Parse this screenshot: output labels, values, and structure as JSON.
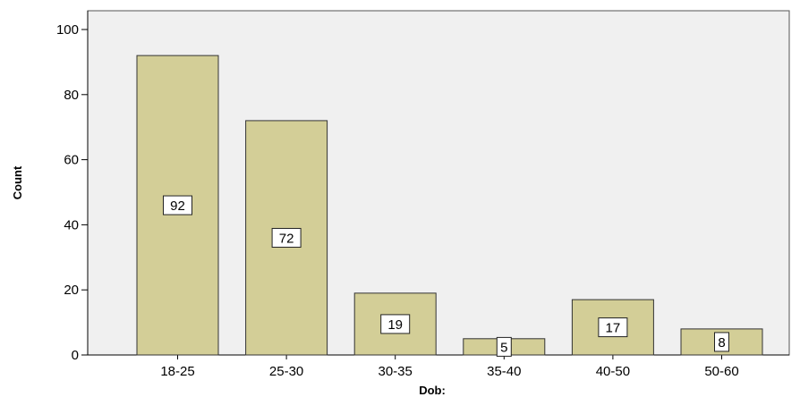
{
  "chart_data": {
    "type": "bar",
    "categories": [
      "18-25",
      "25-30",
      "30-35",
      "35-40",
      "40-50",
      "50-60"
    ],
    "values": [
      92,
      72,
      19,
      5,
      17,
      8
    ],
    "data_labels": [
      "92",
      "72",
      "19",
      "5",
      "17",
      "8"
    ],
    "title": "",
    "xlabel": "Dob:",
    "ylabel": "Count",
    "ylim": [
      0,
      100
    ],
    "yticks": [
      0,
      20,
      40,
      60,
      80,
      100
    ],
    "grid": false,
    "colors": {
      "plot_background": "#f0f0f0",
      "bar_fill": "#d3ce97",
      "bar_stroke": "#333333",
      "axis": "#000000",
      "label_box_fill": "#ffffff"
    }
  }
}
